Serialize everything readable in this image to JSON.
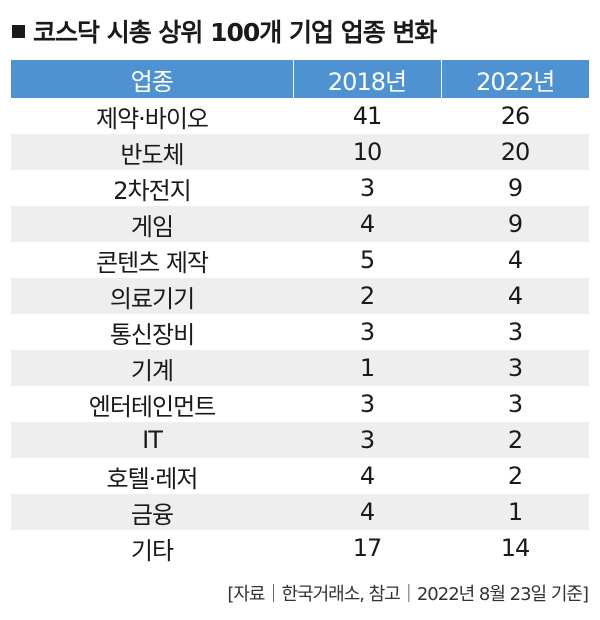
{
  "title": "코스닥 시총 상위 100개 기업 업종 변화",
  "table": {
    "headers": [
      "업종",
      "2018년",
      "2022년"
    ],
    "rows": [
      [
        "제약·바이오",
        "41",
        "26"
      ],
      [
        "반도체",
        "10",
        "20"
      ],
      [
        "2차전지",
        "3",
        "9"
      ],
      [
        "게임",
        "4",
        "9"
      ],
      [
        "콘텐츠 제작",
        "5",
        "4"
      ],
      [
        "의료기기",
        "2",
        "4"
      ],
      [
        "통신장비",
        "3",
        "3"
      ],
      [
        "기계",
        "1",
        "3"
      ],
      [
        "엔터테인먼트",
        "3",
        "3"
      ],
      [
        "IT",
        "3",
        "2"
      ],
      [
        "호텔·레저",
        "4",
        "2"
      ],
      [
        "금융",
        "4",
        "1"
      ],
      [
        "기타",
        "17",
        "14"
      ]
    ]
  },
  "source": "[자료｜한국거래소, 참고｜2022년 8월 23일 기준]",
  "colors": {
    "header_bg": "#4f92d1",
    "stripe_bg": "#eeeeee"
  }
}
